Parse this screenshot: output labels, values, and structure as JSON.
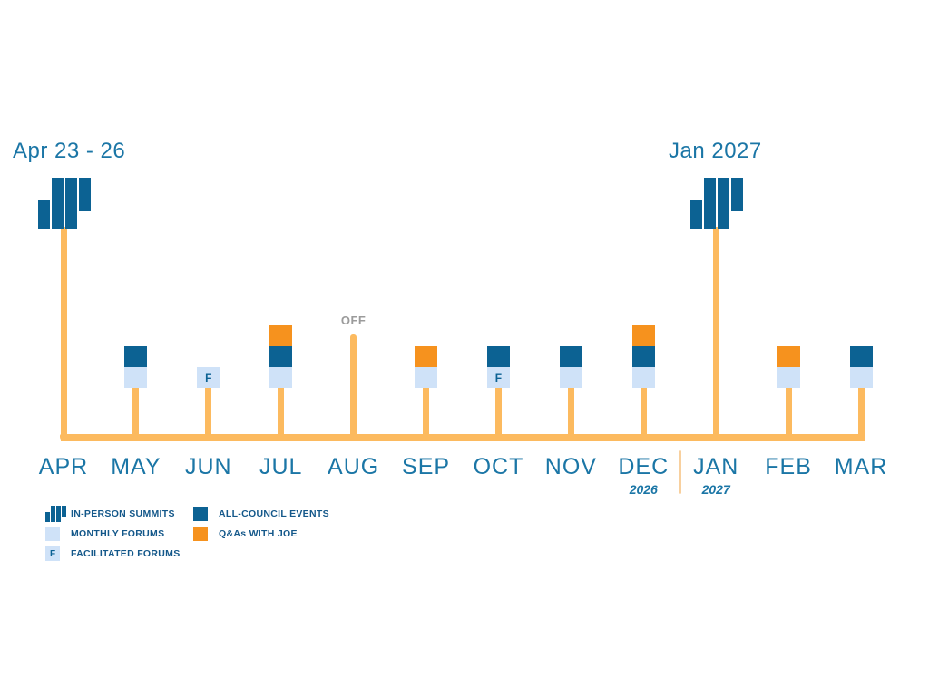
{
  "title_left": "Apr 23 - 26",
  "title_right": "Jan 2027",
  "off_label": "OFF",
  "facilitated_letter": "F",
  "colors": {
    "dark_blue": "#0c6293",
    "light_blue": "#cfe2f8",
    "orange": "#f6921e",
    "timeline": "#fcba5f",
    "divider": "#f8d09e",
    "month_text": "#1b76a6",
    "legend_text": "#14588a",
    "off_gray": "#9b9b9b",
    "background": "#ffffff"
  },
  "timeline": {
    "months": [
      {
        "label": "APR",
        "marker": "summit",
        "stack": []
      },
      {
        "label": "MAY",
        "stack": [
          "all_council",
          "monthly"
        ]
      },
      {
        "label": "JUN",
        "stack": [
          "facilitated"
        ]
      },
      {
        "label": "JUL",
        "stack": [
          "qa",
          "all_council",
          "monthly"
        ]
      },
      {
        "label": "AUG",
        "off": true,
        "stack": []
      },
      {
        "label": "SEP",
        "stack": [
          "qa",
          "monthly"
        ]
      },
      {
        "label": "OCT",
        "stack": [
          "all_council",
          "facilitated"
        ]
      },
      {
        "label": "NOV",
        "stack": [
          "all_council",
          "monthly"
        ]
      },
      {
        "label": "DEC",
        "year": "2026",
        "stack": [
          "qa",
          "all_council",
          "monthly"
        ]
      },
      {
        "label": "JAN",
        "year": "2027",
        "marker": "summit",
        "stack": []
      },
      {
        "label": "FEB",
        "stack": [
          "qa",
          "monthly"
        ]
      },
      {
        "label": "MAR",
        "stack": [
          "all_council",
          "monthly"
        ]
      }
    ]
  },
  "legend": {
    "columns": [
      [
        {
          "icon": "summit-icon",
          "type": "summit",
          "label": "IN-PERSON SUMMITS"
        },
        {
          "icon": "monthly-forum-icon",
          "type": "monthly",
          "label": "MONTHLY FORUMS"
        },
        {
          "icon": "facilitated-forum-icon",
          "type": "facilitated",
          "label": "FACILITATED FORUMS"
        }
      ],
      [
        {
          "icon": "all-council-icon",
          "type": "all_council",
          "label": "ALL-COUNCIL EVENTS"
        },
        {
          "icon": "qa-icon",
          "type": "qa",
          "label": "Q&As WITH JOE"
        }
      ]
    ]
  }
}
